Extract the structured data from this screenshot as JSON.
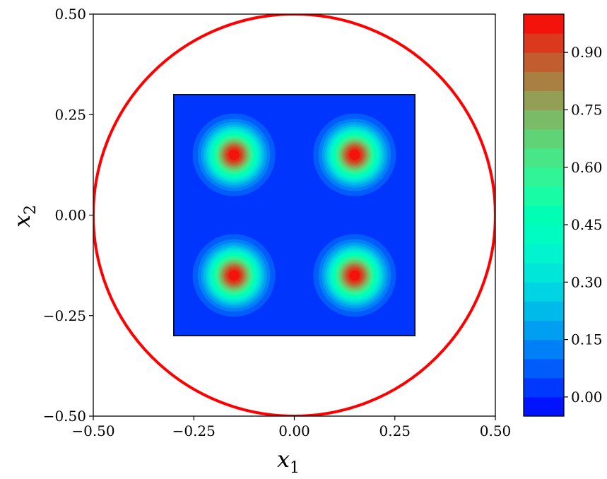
{
  "chart_data": {
    "type": "heatmap",
    "title": "",
    "xlabel": "x",
    "xlabel_sub": "1",
    "ylabel": "x",
    "ylabel_sub": "2",
    "xlim": [
      -0.5,
      0.5
    ],
    "ylim": [
      -0.5,
      0.5
    ],
    "x_ticks": [
      -0.5,
      -0.25,
      0.0,
      0.25,
      0.5
    ],
    "x_tick_labels": [
      "−0.50",
      "−0.25",
      "0.00",
      "0.25",
      "0.50"
    ],
    "y_ticks": [
      -0.5,
      -0.25,
      0.0,
      0.25,
      0.5
    ],
    "y_tick_labels": [
      "−0.50",
      "−0.25",
      "0.00",
      "0.25",
      "0.50"
    ],
    "grid": false,
    "circle": {
      "center": [
        0,
        0
      ],
      "radius": 0.5,
      "color": "#ff0000"
    },
    "square": {
      "xmin": -0.3,
      "xmax": 0.3,
      "ymin": -0.3,
      "ymax": 0.3
    },
    "peaks": [
      {
        "x": -0.15,
        "y": 0.15,
        "value": 1.0
      },
      {
        "x": 0.15,
        "y": 0.15,
        "value": 1.0
      },
      {
        "x": -0.15,
        "y": -0.15,
        "value": 1.0
      },
      {
        "x": 0.15,
        "y": -0.15,
        "value": 1.0
      }
    ],
    "background_value": 0.02,
    "colorbar": {
      "colormap": "rainbow",
      "range": [
        -0.05,
        1.0
      ],
      "levels": 21,
      "ticks": [
        0.0,
        0.15,
        0.3,
        0.45,
        0.6,
        0.75,
        0.9
      ],
      "tick_labels": [
        "0.00",
        "0.15",
        "0.30",
        "0.45",
        "0.60",
        "0.75",
        "0.90"
      ]
    }
  }
}
